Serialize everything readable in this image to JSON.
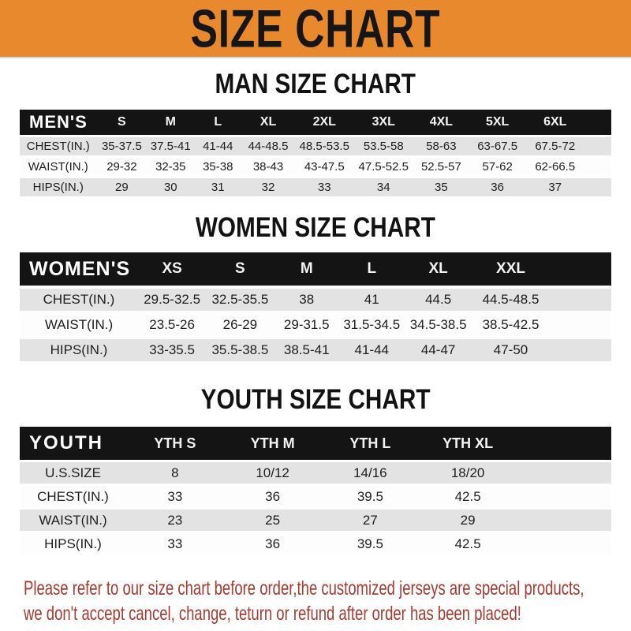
{
  "banner": {
    "title": "SIZE CHART",
    "bg_color": "#E8892D",
    "text_color": "#161616"
  },
  "sections": [
    {
      "heading": "MAN SIZE CHART",
      "table_label": "MEN'S",
      "columns": [
        "S",
        "M",
        "L",
        "XL",
        "2XL",
        "3XL",
        "4XL",
        "5XL",
        "6XL"
      ],
      "rows": [
        {
          "label": "CHEST(IN.)",
          "values": [
            "35-37.5",
            "37.5-41",
            "41-44",
            "44-48.5",
            "48.5-53.5",
            "53.5-58",
            "58-63",
            "63-67.5",
            "67.5-72"
          ]
        },
        {
          "label": "WAIST(IN.)",
          "values": [
            "29-32",
            "32-35",
            "35-38",
            "38-43",
            "43-47.5",
            "47.5-52.5",
            "52.5-57",
            "57-62",
            "62-66.5"
          ]
        },
        {
          "label": "HIPS(IN.)",
          "values": [
            "29",
            "30",
            "31",
            "32",
            "33",
            "34",
            "35",
            "36",
            "37"
          ]
        }
      ]
    },
    {
      "heading": "WOMEN SIZE CHART",
      "table_label": "WOMEN'S",
      "columns": [
        "XS",
        "S",
        "M",
        "L",
        "XL",
        "XXL"
      ],
      "rows": [
        {
          "label": "CHEST(IN.)",
          "values": [
            "29.5-32.5",
            "32.5-35.5",
            "38",
            "41",
            "44.5",
            "44.5-48.5"
          ]
        },
        {
          "label": "WAIST(IN.)",
          "values": [
            "23.5-26",
            "26-29",
            "29-31.5",
            "31.5-34.5",
            "34.5-38.5",
            "38.5-42.5"
          ]
        },
        {
          "label": "HIPS(IN.)",
          "values": [
            "33-35.5",
            "35.5-38.5",
            "38.5-41",
            "41-44",
            "44-47",
            "47-50"
          ]
        }
      ]
    },
    {
      "heading": "YOUTH SIZE CHART",
      "table_label": "YOUTH",
      "columns": [
        "YTH S",
        "YTH M",
        "YTH L",
        "YTH XL"
      ],
      "rows": [
        {
          "label": "U.S.SIZE",
          "values": [
            "8",
            "10/12",
            "14/16",
            "18/20"
          ]
        },
        {
          "label": "CHEST(IN.)",
          "values": [
            "33",
            "36",
            "39.5",
            "42.5"
          ]
        },
        {
          "label": "WAIST(IN.)",
          "values": [
            "23",
            "25",
            "27",
            "29"
          ]
        },
        {
          "label": "HIPS(IN.)",
          "values": [
            "33",
            "36",
            "39.5",
            "42.5"
          ]
        }
      ]
    }
  ],
  "footer": {
    "lines": [
      "Please refer to our size chart before order,the customized jerseys are special products,",
      "we don't accept cancel, change, teturn or refund after order has been placed!"
    ],
    "text_color": "#A83A30"
  }
}
